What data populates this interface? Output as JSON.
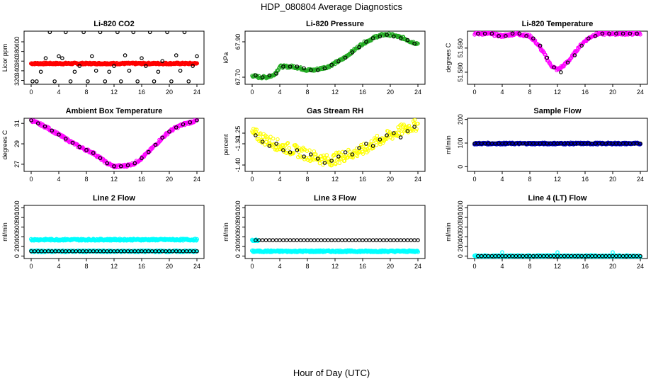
{
  "figure": {
    "title": "HDP_080804  Average Diagnostics",
    "xlabel": "Hour of Day (UTC)"
  },
  "chart_data": [
    {
      "type": "scatter",
      "title": "Li-820 CO2",
      "ylabel": "Licor ppm",
      "xlim": [
        0,
        24
      ],
      "ylim": [
        312,
        422
      ],
      "xticks": [
        "0",
        "4",
        "8",
        "12",
        "16",
        "20",
        "24"
      ],
      "yticks": [
        "320",
        "340",
        "360",
        "380",
        "400"
      ],
      "series": [
        {
          "name": "continuous",
          "color": "#ff0000",
          "kind": "band",
          "x_start": 0,
          "x_end": 24,
          "value": 355
        },
        {
          "name": "hourly",
          "color": "#000000",
          "kind": "points",
          "x": [
            0.2,
            0.8,
            1.4,
            2.1,
            2.7,
            3.4,
            4.0,
            4.5,
            5.0,
            5.7,
            6.3,
            7.0,
            7.6,
            8.2,
            8.8,
            9.4,
            10.0,
            10.7,
            11.3,
            12.0,
            12.5,
            13.0,
            13.6,
            14.2,
            14.8,
            15.4,
            16.0,
            16.6,
            17.2,
            17.8,
            18.4,
            19.0,
            19.7,
            20.3,
            21.0,
            21.6,
            22.2,
            22.8,
            23.4,
            24.0
          ],
          "y": [
            318,
            318,
            338,
            366,
            420,
            318,
            370,
            366,
            420,
            318,
            338,
            350,
            420,
            318,
            370,
            340,
            420,
            318,
            338,
            350,
            420,
            318,
            372,
            340,
            420,
            318,
            366,
            350,
            420,
            318,
            338,
            360,
            420,
            318,
            372,
            340,
            420,
            318,
            350,
            370
          ]
        }
      ]
    },
    {
      "type": "scatter",
      "title": "Li-820 Pressure",
      "ylabel": "kPa",
      "xlim": [
        0,
        24
      ],
      "ylim": [
        67.66,
        67.96
      ],
      "xticks": [
        "0",
        "4",
        "8",
        "12",
        "16",
        "20",
        "24"
      ],
      "yticks": [
        "67.70",
        "67.90"
      ],
      "series": [
        {
          "name": "continuous",
          "color": "#22aa22",
          "kind": "curve",
          "x": [
            0,
            1,
            2,
            3,
            3.5,
            4,
            5,
            6,
            7,
            8,
            9,
            10,
            11,
            12,
            13,
            14,
            15,
            16,
            17,
            18,
            19,
            20,
            21,
            22,
            23,
            24
          ],
          "y": [
            67.71,
            67.7,
            67.7,
            67.71,
            67.73,
            67.76,
            67.76,
            67.76,
            67.75,
            67.74,
            67.74,
            67.75,
            67.76,
            67.78,
            67.8,
            67.83,
            67.86,
            67.89,
            67.91,
            67.93,
            67.94,
            67.94,
            67.93,
            67.92,
            67.9,
            67.89
          ]
        },
        {
          "name": "hourly",
          "color": "#000000",
          "kind": "points",
          "x": [
            0.5,
            1.5,
            2.5,
            3.5,
            4.5,
            5.5,
            6.5,
            7.5,
            8.5,
            9.5,
            10.5,
            11.5,
            12.5,
            13.5,
            14.5,
            15.5,
            16.5,
            17.5,
            18.5,
            19.5,
            20.5,
            21.5,
            22.5,
            23.5
          ],
          "y": [
            67.71,
            67.7,
            67.71,
            67.72,
            67.76,
            67.76,
            67.76,
            67.75,
            67.74,
            67.74,
            67.75,
            67.77,
            67.79,
            67.81,
            67.84,
            67.87,
            67.9,
            67.92,
            67.93,
            67.94,
            67.93,
            67.92,
            67.91,
            67.89
          ]
        }
      ]
    },
    {
      "type": "scatter",
      "title": "Li-820 Temperature",
      "ylabel": "degrees C",
      "xlim": [
        0,
        24
      ],
      "ylim": [
        51.575,
        51.597
      ],
      "xticks": [
        "0",
        "4",
        "8",
        "12",
        "16",
        "20",
        "24"
      ],
      "yticks": [
        "51.580",
        "51.590"
      ],
      "series": [
        {
          "name": "continuous",
          "color": "#ff00ff",
          "kind": "curve",
          "x": [
            0,
            2,
            4,
            6,
            8,
            9,
            10,
            11,
            12,
            13,
            14,
            15,
            16,
            17,
            18,
            20,
            22,
            24
          ],
          "y": [
            51.596,
            51.596,
            51.595,
            51.596,
            51.595,
            51.592,
            51.588,
            51.583,
            51.581,
            51.583,
            51.586,
            51.59,
            51.593,
            51.595,
            51.596,
            51.596,
            51.596,
            51.596
          ]
        },
        {
          "name": "hourly",
          "color": "#000000",
          "kind": "points",
          "x": [
            0.5,
            1.5,
            2.5,
            3.5,
            4.5,
            5.5,
            6.5,
            7.5,
            8.5,
            9.5,
            10.5,
            11.5,
            12.5,
            13.5,
            14.5,
            15.5,
            16.5,
            17.5,
            18.5,
            19.5,
            20.5,
            21.5,
            22.5,
            23.5
          ],
          "y": [
            51.596,
            51.596,
            51.596,
            51.595,
            51.595,
            51.596,
            51.596,
            51.595,
            51.594,
            51.591,
            51.586,
            51.582,
            51.58,
            51.584,
            51.587,
            51.591,
            51.594,
            51.595,
            51.596,
            51.596,
            51.596,
            51.596,
            51.596,
            51.596
          ]
        }
      ]
    },
    {
      "type": "scatter",
      "title": "Ambient Box Temperature",
      "ylabel": "degrees C",
      "xlim": [
        0,
        24
      ],
      "ylim": [
        26.3,
        31.5
      ],
      "xticks": [
        "0",
        "4",
        "8",
        "12",
        "16",
        "20",
        "24"
      ],
      "yticks": [
        "27",
        "29",
        "31"
      ],
      "series": [
        {
          "name": "continuous",
          "color": "#ff00ff",
          "kind": "curve",
          "x": [
            0,
            1,
            2,
            3,
            4,
            5,
            6,
            7,
            8,
            9,
            10,
            11,
            12,
            13,
            14,
            15,
            16,
            17,
            18,
            19,
            20,
            21,
            22,
            23,
            24
          ],
          "y": [
            31.3,
            31.0,
            30.7,
            30.3,
            29.9,
            29.5,
            29.1,
            28.7,
            28.4,
            28.1,
            27.6,
            27.1,
            26.8,
            26.8,
            26.9,
            27.1,
            27.6,
            28.2,
            28.9,
            29.6,
            30.2,
            30.6,
            30.9,
            31.1,
            31.3
          ]
        },
        {
          "name": "hourly",
          "color": "#000000",
          "kind": "points",
          "x": [
            0,
            1,
            2,
            3,
            4,
            5,
            6,
            7,
            8,
            9,
            10,
            11,
            12,
            13,
            14,
            15,
            16,
            17,
            18,
            19,
            20,
            21,
            22,
            23,
            24
          ],
          "y": [
            31.3,
            31.0,
            30.7,
            30.3,
            29.9,
            29.5,
            29.1,
            28.7,
            28.4,
            28.1,
            27.6,
            27.1,
            26.8,
            26.8,
            26.9,
            27.1,
            27.6,
            28.2,
            28.9,
            29.6,
            30.2,
            30.6,
            30.9,
            31.1,
            31.3
          ]
        }
      ]
    },
    {
      "type": "scatter",
      "title": "Gas Stream RH",
      "ylabel": "percent",
      "xlim": [
        0,
        24
      ],
      "ylim": [
        -1.43,
        -1.18
      ],
      "xticks": [
        "0",
        "4",
        "8",
        "12",
        "16",
        "20",
        "24"
      ],
      "yticks": [
        "-1.40",
        "-1.30",
        "-1.25"
      ],
      "series": [
        {
          "name": "continuous",
          "color": "#ffff00",
          "kind": "cloud",
          "x": [
            0,
            2,
            4,
            6,
            8,
            10,
            11,
            12,
            14,
            16,
            18,
            20,
            22,
            24
          ],
          "y": [
            -1.25,
            -1.28,
            -1.31,
            -1.33,
            -1.35,
            -1.37,
            -1.38,
            -1.37,
            -1.35,
            -1.33,
            -1.29,
            -1.26,
            -1.23,
            -1.21
          ]
        },
        {
          "name": "hourly",
          "color": "#000000",
          "kind": "points",
          "x": [
            0.5,
            1.5,
            2.5,
            3.5,
            4.5,
            5.5,
            6.5,
            7.5,
            8.5,
            9.5,
            10.5,
            11.5,
            12.5,
            13.5,
            14.5,
            15.5,
            16.5,
            17.5,
            18.5,
            19.5,
            20.5,
            21.5,
            22.5,
            23.5
          ],
          "y": [
            -1.26,
            -1.29,
            -1.31,
            -1.3,
            -1.33,
            -1.34,
            -1.33,
            -1.36,
            -1.35,
            -1.37,
            -1.39,
            -1.38,
            -1.36,
            -1.34,
            -1.35,
            -1.32,
            -1.3,
            -1.31,
            -1.28,
            -1.26,
            -1.25,
            -1.27,
            -1.24,
            -1.22
          ]
        }
      ]
    },
    {
      "type": "scatter",
      "title": "Sample Flow",
      "ylabel": "ml/min",
      "xlim": [
        0,
        24
      ],
      "ylim": [
        -20,
        205
      ],
      "xticks": [
        "0",
        "4",
        "8",
        "12",
        "16",
        "20",
        "24"
      ],
      "yticks": [
        "0",
        "100",
        "200"
      ],
      "series": [
        {
          "name": "continuous",
          "color": "#0000cc",
          "kind": "band",
          "x_start": 0,
          "x_end": 24,
          "value": 98
        },
        {
          "name": "hourly",
          "color": "#000000",
          "kind": "points",
          "x_start": 0,
          "x_end": 24,
          "step": 0.5,
          "value": 98
        }
      ]
    },
    {
      "type": "scatter",
      "title": "Line 2 Flow",
      "ylabel": "ml/min",
      "xlim": [
        0,
        24
      ],
      "ylim": [
        -50,
        1050
      ],
      "xticks": [
        "0",
        "4",
        "8",
        "12",
        "16",
        "20",
        "24"
      ],
      "yticks": [
        "0",
        "200",
        "400",
        "600",
        "800",
        "1000"
      ],
      "series": [
        {
          "name": "continuous",
          "color": "#00ffff",
          "kind": "band",
          "x_start": 0,
          "x_end": 24,
          "value": 340
        },
        {
          "name": "continuous-low",
          "color": "#00ffff",
          "kind": "band",
          "x_start": 0,
          "x_end": 24,
          "value": 100
        },
        {
          "name": "hourly",
          "color": "#000000",
          "kind": "points",
          "x_start": 0,
          "x_end": 24,
          "step": 0.5,
          "value": 100
        }
      ]
    },
    {
      "type": "scatter",
      "title": "Line 3 Flow",
      "ylabel": "ml/min",
      "xlim": [
        0,
        24
      ],
      "ylim": [
        -50,
        1050
      ],
      "xticks": [
        "0",
        "4",
        "8",
        "12",
        "16",
        "20",
        "24"
      ],
      "yticks": [
        "0",
        "200",
        "400",
        "600",
        "800",
        "1000"
      ],
      "series": [
        {
          "name": "continuous",
          "color": "#00ffff",
          "kind": "band",
          "x_start": 0,
          "x_end": 24,
          "value": 100
        },
        {
          "name": "continuous-high",
          "color": "#00ffff",
          "kind": "band",
          "x_start": 0,
          "x_end": 0.8,
          "value": 330
        },
        {
          "name": "hourly",
          "color": "#000000",
          "kind": "points",
          "x_start": 0.5,
          "x_end": 24,
          "step": 0.5,
          "value": 330
        }
      ]
    },
    {
      "type": "scatter",
      "title": "Line 4 (LT) Flow",
      "ylabel": "ml/min",
      "xlim": [
        0,
        24
      ],
      "ylim": [
        -50,
        1050
      ],
      "xticks": [
        "0",
        "4",
        "8",
        "12",
        "16",
        "20",
        "24"
      ],
      "yticks": [
        "0",
        "200",
        "400",
        "600",
        "800",
        "1000"
      ],
      "series": [
        {
          "name": "continuous",
          "color": "#00ffff",
          "kind": "band",
          "x_start": 0,
          "x_end": 24,
          "value": 0
        },
        {
          "name": "spikes",
          "color": "#00ffff",
          "kind": "points",
          "x": [
            4,
            12,
            20
          ],
          "y": [
            80,
            80,
            80
          ]
        },
        {
          "name": "hourly",
          "color": "#000000",
          "kind": "points",
          "x_start": 0.5,
          "x_end": 24,
          "step": 0.5,
          "value": 0
        }
      ]
    }
  ]
}
